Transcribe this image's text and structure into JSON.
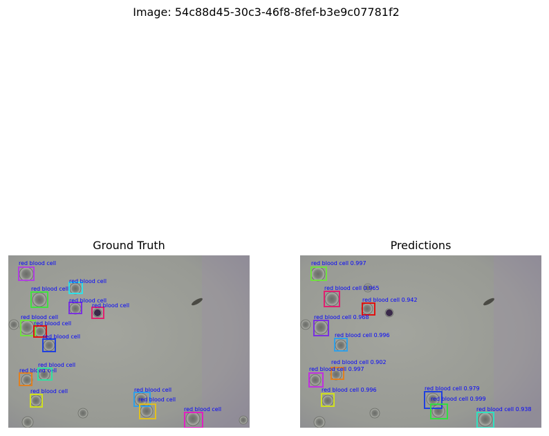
{
  "figure": {
    "suptitle": "Image: 54c88d45-30c3-46f8-8fef-b3e9c07781f2"
  },
  "panels": {
    "ground_truth": {
      "title": "Ground Truth",
      "boxes": [
        {
          "label": "red blood cell",
          "color": "#b040e0"
        },
        {
          "label": "red blood cell",
          "color": "#30e0e8"
        },
        {
          "label": "red blood cell",
          "color": "#40e040"
        },
        {
          "label": "red blood cell",
          "color": "#7a30e0"
        },
        {
          "label": "red blood cell",
          "color": "#e02070"
        },
        {
          "label": "red blood cell",
          "color": "#70e040"
        },
        {
          "label": "red blood cell",
          "color": "#e01010"
        },
        {
          "label": "red blood cell",
          "color": "#2040e0"
        },
        {
          "label": "red blood cell",
          "color": "#e08020"
        },
        {
          "label": "red blood cell",
          "color": "#30e0a0"
        },
        {
          "label": "red blood cell",
          "color": "#d0e020"
        },
        {
          "label": "red blood cell",
          "color": "#30a0e8"
        },
        {
          "label": "red blood cell",
          "color": "#e0c020"
        },
        {
          "label": "red blood cell",
          "color": "#e020c0"
        }
      ]
    },
    "predictions": {
      "title": "Predictions",
      "boxes": [
        {
          "label": "red blood cell 0.997",
          "color": "#70e040"
        },
        {
          "label": "red blood cell 0.965",
          "color": "#e02070"
        },
        {
          "label": "red blood cell 0.942",
          "color": "#e01010"
        },
        {
          "label": "red blood cell 0.968",
          "color": "#7a30e0"
        },
        {
          "label": "red blood cell 0.996",
          "color": "#30a0e8"
        },
        {
          "label": "red blood cell 0.902",
          "color": "#e08020"
        },
        {
          "label": "red blood cell 0.997",
          "color": "#c030e0"
        },
        {
          "label": "red blood cell 0.996",
          "color": "#d0e020"
        },
        {
          "label": "red blood cell 0.979",
          "color": "#2040e0"
        },
        {
          "label": "red blood cell 0.999",
          "color": "#30e040"
        },
        {
          "label": "red blood cell 0.938",
          "color": "#30e0c0"
        }
      ]
    }
  },
  "colors": {
    "label_text": "#0000ff",
    "slide_background": "#9a9c96"
  }
}
